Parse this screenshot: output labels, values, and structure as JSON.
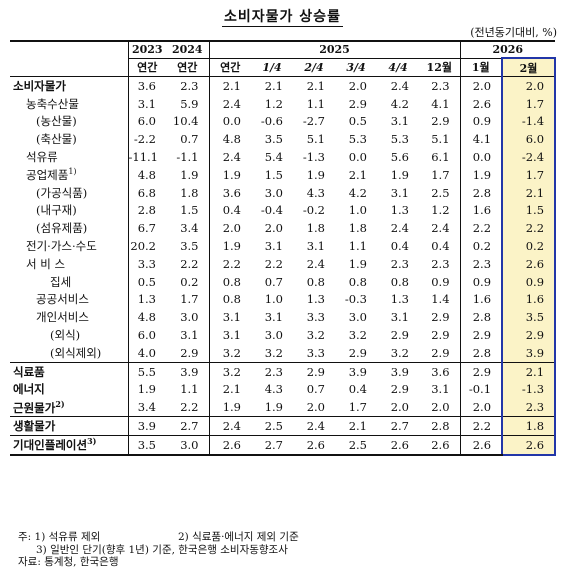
{
  "title": "소비자물가 상승률",
  "unit": "(전년동기대비, %)",
  "header": {
    "years": [
      "2023",
      "2024",
      "2025",
      "2026"
    ],
    "cols": [
      "연간",
      "연간",
      "연간",
      "1/4",
      "2/4",
      "3/4",
      "4/4",
      "12월",
      "1월",
      "2월"
    ]
  },
  "rows": [
    {
      "label": "소비자물가",
      "values": [
        "3.6",
        "2.3",
        "2.1",
        "2.1",
        "2.1",
        "2.0",
        "2.4",
        "2.3",
        "2.0",
        "2.0"
      ]
    },
    {
      "label": "농축수산물",
      "values": [
        "3.1",
        "5.9",
        "2.4",
        "1.2",
        "1.1",
        "2.9",
        "4.2",
        "4.1",
        "2.6",
        "1.7"
      ]
    },
    {
      "label": "(농산물)",
      "values": [
        "6.0",
        "10.4",
        "0.0",
        "-0.6",
        "-2.7",
        "0.5",
        "3.1",
        "2.9",
        "0.9",
        "-1.4"
      ]
    },
    {
      "label": "(축산물)",
      "values": [
        "-2.2",
        "0.7",
        "4.8",
        "3.5",
        "5.1",
        "5.3",
        "5.3",
        "5.1",
        "4.1",
        "6.0"
      ]
    },
    {
      "label": "석유류",
      "values": [
        "-11.1",
        "-1.1",
        "2.4",
        "5.4",
        "-1.3",
        "0.0",
        "5.6",
        "6.1",
        "0.0",
        "-2.4"
      ]
    },
    {
      "label": "공업제품",
      "sup": "1)",
      "values": [
        "4.8",
        "1.9",
        "1.9",
        "1.5",
        "1.9",
        "2.1",
        "1.9",
        "1.7",
        "1.9",
        "1.7"
      ]
    },
    {
      "label": "(가공식품)",
      "values": [
        "6.8",
        "1.8",
        "3.6",
        "3.0",
        "4.3",
        "4.2",
        "3.1",
        "2.5",
        "2.8",
        "2.1"
      ]
    },
    {
      "label": "(내구재)",
      "values": [
        "2.8",
        "1.5",
        "0.4",
        "-0.4",
        "-0.2",
        "1.0",
        "1.3",
        "1.2",
        "1.6",
        "1.5"
      ]
    },
    {
      "label": "(섬유제품)",
      "values": [
        "6.7",
        "3.4",
        "2.0",
        "2.0",
        "1.8",
        "1.8",
        "2.4",
        "2.4",
        "2.2",
        "2.2"
      ]
    },
    {
      "label": "전기·가스·수도",
      "values": [
        "20.2",
        "3.5",
        "1.9",
        "3.1",
        "3.1",
        "1.1",
        "0.4",
        "0.4",
        "0.2",
        "0.2"
      ]
    },
    {
      "label": "서 비 스",
      "values": [
        "3.3",
        "2.2",
        "2.2",
        "2.2",
        "2.4",
        "1.9",
        "2.3",
        "2.3",
        "2.3",
        "2.6"
      ]
    },
    {
      "label": "집세",
      "values": [
        "0.5",
        "0.2",
        "0.8",
        "0.7",
        "0.8",
        "0.8",
        "0.8",
        "0.9",
        "0.9",
        "0.9"
      ]
    },
    {
      "label": "공공서비스",
      "values": [
        "1.3",
        "1.7",
        "0.8",
        "1.0",
        "1.3",
        "-0.3",
        "1.3",
        "1.4",
        "1.6",
        "1.6"
      ]
    },
    {
      "label": "개인서비스",
      "values": [
        "4.8",
        "3.0",
        "3.1",
        "3.1",
        "3.3",
        "3.0",
        "3.1",
        "2.9",
        "2.8",
        "3.5"
      ]
    },
    {
      "label": "(외식)",
      "values": [
        "6.0",
        "3.1",
        "3.1",
        "3.0",
        "3.2",
        "3.2",
        "2.9",
        "2.9",
        "2.9",
        "2.9"
      ]
    },
    {
      "label": "(외식제외)",
      "values": [
        "4.0",
        "2.9",
        "3.2",
        "3.2",
        "3.3",
        "2.9",
        "3.2",
        "2.9",
        "2.8",
        "3.9"
      ]
    },
    {
      "label": "식료품",
      "values": [
        "5.5",
        "3.9",
        "3.2",
        "2.3",
        "2.9",
        "3.9",
        "3.9",
        "3.6",
        "2.9",
        "2.1"
      ]
    },
    {
      "label": "에너지",
      "values": [
        "1.9",
        "1.1",
        "2.1",
        "4.3",
        "0.7",
        "0.4",
        "2.9",
        "3.1",
        "-0.1",
        "-1.3"
      ]
    },
    {
      "label": "근원물가",
      "sup": "2)",
      "values": [
        "3.4",
        "2.2",
        "1.9",
        "1.9",
        "2.0",
        "1.7",
        "2.0",
        "2.0",
        "2.0",
        "2.3"
      ]
    },
    {
      "label": "생활물가",
      "values": [
        "3.9",
        "2.7",
        "2.4",
        "2.5",
        "2.4",
        "2.1",
        "2.7",
        "2.8",
        "2.2",
        "1.8"
      ]
    },
    {
      "label": "기대인플레이션",
      "sup": "3)",
      "values": [
        "3.5",
        "3.0",
        "2.6",
        "2.7",
        "2.6",
        "2.5",
        "2.6",
        "2.6",
        "2.6",
        "2.6"
      ]
    }
  ],
  "notes": {
    "n1": "주: 1) 석유류 제외",
    "n2": "2) 식료품·에너지 제외 기준",
    "n3": "3) 일반인 단기(향후 1년) 기준, 한국은행 소비자동향조사",
    "source": "자료: 통계청, 한국은행"
  }
}
